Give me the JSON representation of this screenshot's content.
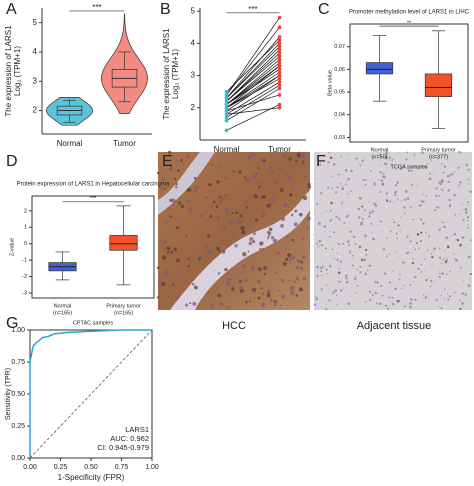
{
  "chart_data": [
    {
      "type": "violin",
      "panel": "A",
      "ylabel": [
        "The expression of LARS1",
        "Log₂ (TPM+1)"
      ],
      "ylim": [
        1.2,
        5.5
      ],
      "yticks": [
        2,
        3,
        4,
        5
      ],
      "significance": "***",
      "series": [
        {
          "name": "Normal",
          "color": "#5cc3dc",
          "min": 1.6,
          "q1": 1.85,
          "median": 2.0,
          "q3": 2.15,
          "max": 2.35,
          "violin_min": 1.5,
          "violin_max": 2.45
        },
        {
          "name": "Tumor",
          "color": "#f28b82",
          "min": 2.3,
          "q1": 2.8,
          "median": 3.1,
          "q3": 3.4,
          "max": 4.0,
          "violin_min": 1.9,
          "violin_max": 5.3
        }
      ]
    },
    {
      "type": "paired",
      "panel": "B",
      "ylabel": [
        "The expression of LARS1",
        "Log₂ (TPM+1)"
      ],
      "ylim": [
        1.0,
        5.1
      ],
      "yticks": [
        2,
        3,
        4,
        5
      ],
      "significance": "***",
      "series": [
        {
          "name": "Normal",
          "color": "#3fb8cf",
          "values": [
            1.3,
            1.6,
            1.8,
            1.9,
            2.0,
            2.0,
            2.1,
            2.1,
            2.2,
            2.2,
            2.3,
            2.3,
            2.4,
            2.4,
            2.5,
            1.9,
            2.0,
            2.1,
            2.2,
            1.8,
            2.0,
            2.3,
            1.7,
            2.1
          ]
        },
        {
          "name": "Tumor",
          "color": "#e8433a",
          "values": [
            2.1,
            2.6,
            2.8,
            3.0,
            3.1,
            3.3,
            3.4,
            3.5,
            3.6,
            3.8,
            4.0,
            4.2,
            4.5,
            4.8,
            4.1,
            2.4,
            2.9,
            3.2,
            3.7,
            2.0,
            3.0,
            3.9,
            2.7,
            3.3
          ]
        }
      ]
    },
    {
      "type": "box",
      "panel": "C",
      "title": "Promoter methylation level of LARS1 in LIHC",
      "ylabel": "Beta value",
      "xlabel": "TCGA samples",
      "ylim": [
        0.028,
        0.08
      ],
      "yticks": [
        0.03,
        0.04,
        0.05,
        0.06,
        0.07
      ],
      "significance": "**",
      "series": [
        {
          "name": "Normal",
          "n_label": "(n=50)",
          "color": "#4262d8",
          "min": 0.046,
          "q1": 0.058,
          "median": 0.06,
          "q3": 0.063,
          "max": 0.075
        },
        {
          "name": "Primary tumor",
          "n_label": "(n=377)",
          "color": "#f0522a",
          "min": 0.034,
          "q1": 0.048,
          "median": 0.052,
          "q3": 0.058,
          "max": 0.077
        }
      ]
    },
    {
      "type": "box",
      "panel": "D",
      "title": "Protein expression of LARS1 in Hepatocellular carcinoma",
      "ylabel": "Z-value",
      "xlabel": "CPTAC samples",
      "ylim": [
        -3.3,
        2.9
      ],
      "yticks": [
        -3,
        -2,
        -1,
        0,
        1,
        2
      ],
      "significance": "***",
      "series": [
        {
          "name": "Normal",
          "n_label": "(n=165)",
          "color": "#4262d8",
          "min": -2.2,
          "q1": -1.65,
          "median": -1.4,
          "q3": -1.15,
          "max": -0.5
        },
        {
          "name": "Primary tumor",
          "n_label": "(n=165)",
          "color": "#f0522a",
          "min": -2.5,
          "q1": -0.4,
          "median": 0.0,
          "q3": 0.5,
          "max": 2.3
        }
      ]
    },
    {
      "type": "roc",
      "panel": "G",
      "xlabel": "1-Specificity (FPR)",
      "ylabel": "Sensitivity (TPR)",
      "xlim": [
        0,
        1
      ],
      "ylim": [
        0,
        1
      ],
      "xticks": [
        {
          "value": 0,
          "label": "0.00"
        },
        {
          "value": 0.25,
          "label": "0.25"
        },
        {
          "value": 0.5,
          "label": "0.50"
        },
        {
          "value": 0.75,
          "label": "0.75"
        },
        {
          "value": 1,
          "label": "1.00"
        }
      ],
      "yticks": [
        {
          "value": 0,
          "label": "0.00"
        },
        {
          "value": 0.25,
          "label": "0.25"
        },
        {
          "value": 0.5,
          "label": "0.50"
        },
        {
          "value": 0.75,
          "label": "0.75"
        },
        {
          "value": 1,
          "label": "1.00"
        }
      ],
      "annotations": [
        "LARS1",
        "AUC: 0.962",
        "CI: 0.945-0.979"
      ],
      "series": [
        {
          "color": "#2aa3d6",
          "x": [
            0,
            0,
            0.01,
            0.02,
            0.03,
            0.05,
            0.08,
            0.1,
            0.15,
            0.2,
            0.3,
            0.5,
            0.75,
            1
          ],
          "values": [
            0,
            0.75,
            0.8,
            0.85,
            0.88,
            0.9,
            0.92,
            0.94,
            0.95,
            0.97,
            0.98,
            0.99,
            1,
            1
          ]
        }
      ]
    }
  ],
  "images": [
    {
      "panel": "E",
      "caption": "HCC"
    },
    {
      "panel": "F",
      "caption": "Adjacent tissue"
    }
  ]
}
